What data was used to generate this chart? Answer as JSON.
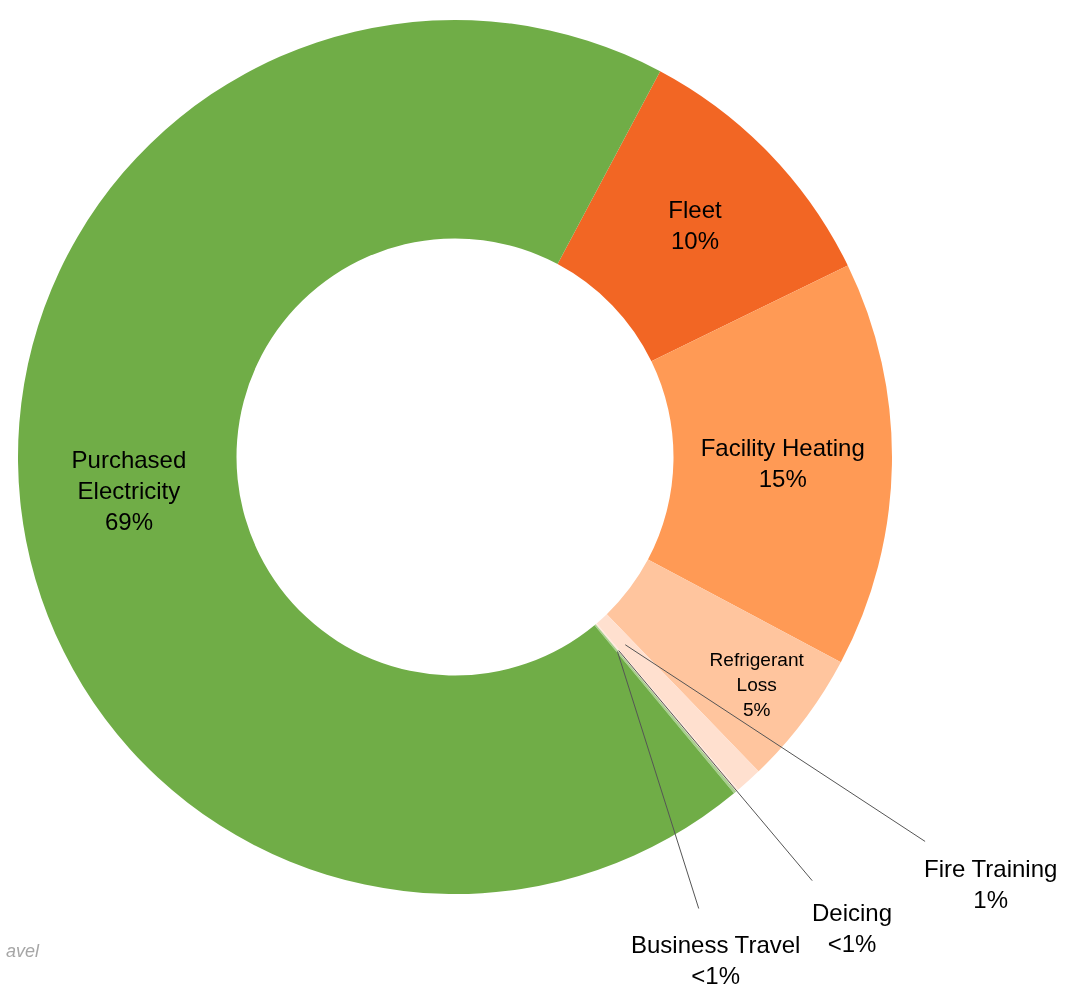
{
  "chart_data": {
    "type": "donut",
    "categories": [
      "Fleet",
      "Facility Heating",
      "Refrigerant Loss",
      "Fire Training",
      "Deicing",
      "Business Travel",
      "Purchased Electricity"
    ],
    "values": [
      10,
      15,
      5,
      1,
      0.1,
      0.1,
      68.8
    ],
    "value_labels": [
      "10%",
      "15%",
      "5%",
      "1%",
      "<1%",
      "<1%",
      "69%"
    ],
    "colors": [
      "#f26624",
      "#ff9a55",
      "#ffc59e",
      "#ffe0cf",
      "#ffe8dc",
      "#a9cf8f",
      "#70ad47"
    ],
    "annotations": [
      "avel"
    ]
  }
}
